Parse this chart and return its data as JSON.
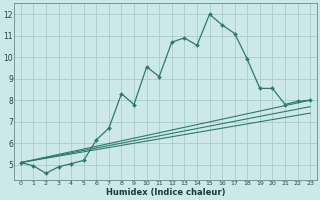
{
  "title": "",
  "xlabel": "Humidex (Indice chaleur)",
  "bg_color": "#cce8e8",
  "grid_color": "#aacccc",
  "line_color": "#2d7a6a",
  "xlim": [
    -0.5,
    23.5
  ],
  "ylim": [
    4.3,
    12.5
  ],
  "yticks": [
    5,
    6,
    7,
    8,
    9,
    10,
    11,
    12
  ],
  "xticks": [
    0,
    1,
    2,
    3,
    4,
    5,
    6,
    7,
    8,
    9,
    10,
    11,
    12,
    13,
    14,
    15,
    16,
    17,
    18,
    19,
    20,
    21,
    22,
    23
  ],
  "main_line_x": [
    0,
    1,
    2,
    3,
    4,
    5,
    6,
    7,
    8,
    9,
    10,
    11,
    12,
    13,
    14,
    15,
    16,
    17,
    18,
    19,
    20,
    21,
    22,
    23
  ],
  "main_line_y": [
    5.1,
    4.95,
    4.6,
    4.9,
    5.05,
    5.2,
    6.15,
    6.7,
    8.3,
    7.8,
    9.55,
    9.1,
    10.7,
    10.9,
    10.55,
    12.0,
    11.5,
    11.1,
    9.9,
    8.55,
    8.55,
    7.8,
    7.95,
    8.0
  ],
  "line2_x": [
    0,
    23
  ],
  "line2_y": [
    5.1,
    8.0
  ],
  "line3_x": [
    0,
    23
  ],
  "line3_y": [
    5.1,
    7.7
  ],
  "line4_x": [
    0,
    23
  ],
  "line4_y": [
    5.1,
    7.4
  ],
  "xlabel_fontsize": 6.0,
  "tick_fontsize_x": 4.5,
  "tick_fontsize_y": 5.5
}
